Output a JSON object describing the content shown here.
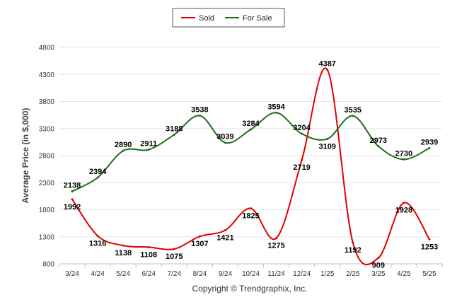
{
  "chart_data": {
    "type": "line",
    "title": "",
    "xlabel": "",
    "ylabel": "Average Price (in $,000)",
    "categories": [
      "3/24",
      "4/24",
      "5/24",
      "6/24",
      "7/24",
      "8/24",
      "9/24",
      "10/24",
      "11/24",
      "12/24",
      "1/25",
      "2/25",
      "3/25",
      "4/25",
      "5/25"
    ],
    "yticks": [
      "800",
      "1300",
      "1800",
      "2300",
      "2800",
      "3300",
      "3800",
      "4300",
      "4800"
    ],
    "ylim": [
      800,
      4800
    ],
    "grid": true,
    "legend_position": "top-center",
    "series": [
      {
        "name": "Sold",
        "color": "#e00000",
        "values": [
          1992,
          1316,
          1138,
          1108,
          1075,
          1307,
          1421,
          1825,
          1275,
          2719,
          4387,
          1192,
          909,
          1928,
          1253
        ]
      },
      {
        "name": "For Sale",
        "color": "#1e6e1e",
        "values": [
          2138,
          2394,
          2890,
          2911,
          3188,
          3538,
          3039,
          3284,
          3594,
          3204,
          3109,
          3535,
          2973,
          2730,
          2939
        ]
      }
    ]
  },
  "footer": "Copyright © Trendgraphix, Inc."
}
